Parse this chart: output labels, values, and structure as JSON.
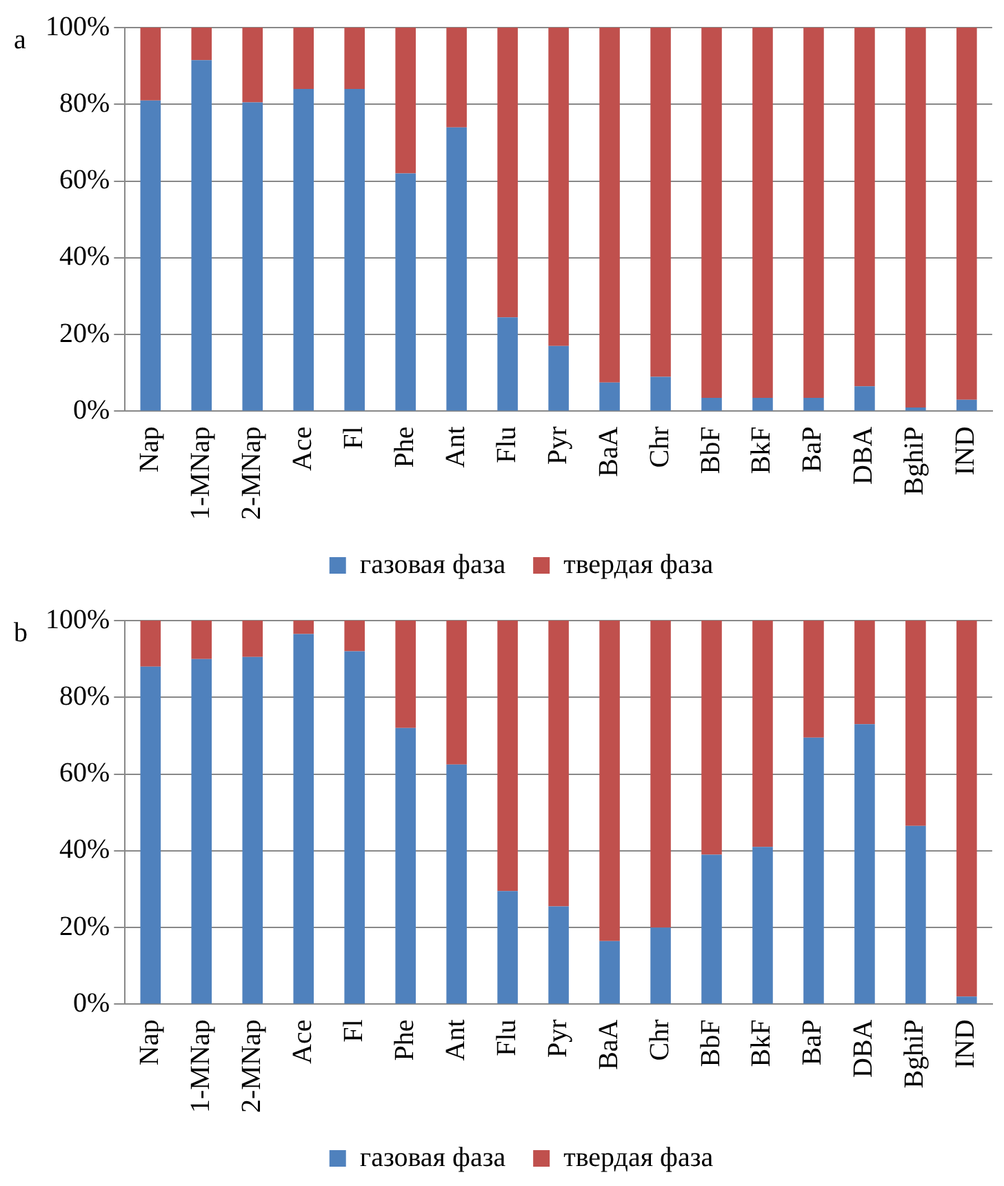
{
  "chart_data": [
    {
      "type": "bar",
      "title": "a",
      "stacked": true,
      "categories": [
        "Nap",
        "1-MNap",
        "2-MNap",
        "Ace",
        "Fl",
        "Phe",
        "Ant",
        "Flu",
        "Pyr",
        "BaA",
        "Chr",
        "BbF",
        "BkF",
        "BaP",
        "DBA",
        "BghiP",
        "IND"
      ],
      "series": [
        {
          "name": "газовая фаза",
          "color": "#4f81bd",
          "values": [
            81,
            91.5,
            80.5,
            84,
            84,
            62,
            74,
            24.5,
            17,
            7.5,
            9,
            3.5,
            3.5,
            3.5,
            6.5,
            1,
            3
          ]
        },
        {
          "name": "твердая фаза",
          "color": "#c0504d",
          "values": [
            19,
            8.5,
            19.5,
            16,
            16,
            38,
            26,
            75.5,
            83,
            92.5,
            91,
            96.5,
            96.5,
            96.5,
            93.5,
            99,
            97
          ]
        }
      ],
      "ylim": [
        0,
        100
      ],
      "yticks": [
        {
          "value": 0,
          "label": "0%"
        },
        {
          "value": 20,
          "label": "20%"
        },
        {
          "value": 40,
          "label": "40%"
        },
        {
          "value": 60,
          "label": "60%"
        },
        {
          "value": 80,
          "label": "80%"
        },
        {
          "value": 100,
          "label": "100%"
        }
      ],
      "grid": "y",
      "legend": "bottom"
    },
    {
      "type": "bar",
      "title": "b",
      "stacked": true,
      "categories": [
        "Nap",
        "1-MNap",
        "2-MNap",
        "Ace",
        "Fl",
        "Phe",
        "Ant",
        "Flu",
        "Pyr",
        "BaA",
        "Chr",
        "BbF",
        "BkF",
        "BaP",
        "DBA",
        "BghiP",
        "IND"
      ],
      "series": [
        {
          "name": "газовая фаза",
          "color": "#4f81bd",
          "values": [
            88,
            90,
            90.5,
            96.5,
            92,
            72,
            62.5,
            29.5,
            25.5,
            16.5,
            20,
            39,
            41,
            69.5,
            73,
            46.5,
            2
          ]
        },
        {
          "name": "твердая фаза",
          "color": "#c0504d",
          "values": [
            12,
            10,
            9.5,
            3.5,
            8,
            28,
            37.5,
            70.5,
            74.5,
            83.5,
            80,
            61,
            59,
            30.5,
            27,
            53.5,
            98
          ]
        }
      ],
      "ylim": [
        0,
        100
      ],
      "yticks": [
        {
          "value": 0,
          "label": "0%"
        },
        {
          "value": 20,
          "label": "20%"
        },
        {
          "value": 40,
          "label": "40%"
        },
        {
          "value": 60,
          "label": "60%"
        },
        {
          "value": 80,
          "label": "80%"
        },
        {
          "value": 100,
          "label": "100%"
        }
      ],
      "grid": "y",
      "legend": "bottom"
    }
  ]
}
